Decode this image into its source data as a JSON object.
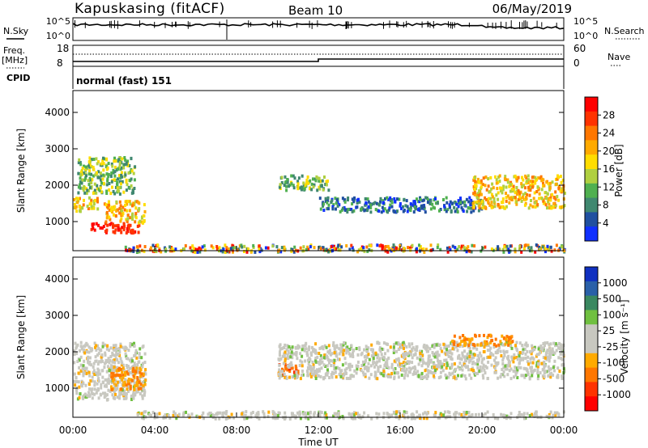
{
  "header": {
    "title": "Kapuskasing (fitACF)",
    "beam": "Beam 10",
    "date": "06/May/2019"
  },
  "top_panels": {
    "nsky_label": "N.Sky",
    "nsearch_label": "N.Search",
    "noise_ticks": [
      "10^5",
      "10^0"
    ],
    "freq_label": "Freq.",
    "freq_unit": "[MHz]",
    "freq_ticks": [
      "18",
      "8"
    ],
    "nave_ticks": [
      "60",
      "0"
    ],
    "nave_label": "Nave",
    "cpid_label": "CPID",
    "cpid_value": "normal (fast) 151"
  },
  "colorbars": {
    "power": {
      "label": "Power [dB]",
      "ticks": [
        "28",
        "24",
        "20",
        "16",
        "12",
        "8",
        "4"
      ],
      "colors": [
        "#ff0000",
        "#ff3300",
        "#ff7700",
        "#ffaa00",
        "#ffdd00",
        "#b0d040",
        "#50b050",
        "#408870",
        "#2050a0",
        "#1030ff"
      ]
    },
    "velocity": {
      "label": "Velocity [m s⁻¹]",
      "ticks": [
        "1000",
        "500",
        "100",
        "25",
        "-25",
        "-100",
        "-500",
        "-1000"
      ],
      "colors": [
        "#1030c0",
        "#2a60a8",
        "#3a8860",
        "#70c040",
        "#c8c8c0",
        "#c8c8c0",
        "#ffaa00",
        "#ff7700",
        "#ff3300",
        "#ff0000"
      ]
    }
  },
  "chart_data": [
    {
      "type": "heatmap",
      "name": "power",
      "ylabel": "Slant Range [km]",
      "y_ticks": [
        "1000",
        "2000",
        "3000",
        "4000"
      ],
      "ylim": [
        200,
        4600
      ],
      "xlim": [
        0,
        24
      ],
      "features": [
        {
          "t0": 0.0,
          "t1": 1.2,
          "r0": 1300,
          "r1": 1700,
          "level": "high"
        },
        {
          "t0": 0.8,
          "t1": 3.2,
          "r0": 700,
          "r1": 1000,
          "level": "max"
        },
        {
          "t0": 1.5,
          "t1": 3.5,
          "r0": 1000,
          "r1": 1600,
          "level": "high"
        },
        {
          "t0": 0.2,
          "t1": 3.0,
          "r0": 1800,
          "r1": 2800,
          "level": "mid"
        },
        {
          "t0": 10.0,
          "t1": 12.5,
          "r0": 1900,
          "r1": 2300,
          "level": "mid"
        },
        {
          "t0": 12.0,
          "t1": 20.0,
          "r0": 1300,
          "r1": 1700,
          "level": "low"
        },
        {
          "t0": 19.5,
          "t1": 24.0,
          "r0": 1400,
          "r1": 2300,
          "level": "high"
        },
        {
          "t0": 2.5,
          "t1": 24.0,
          "r0": 200,
          "r1": 400,
          "level": "mixed"
        }
      ]
    },
    {
      "type": "heatmap",
      "name": "velocity",
      "ylabel": "Slant Range [km]",
      "y_ticks": [
        "1000",
        "2000",
        "3000",
        "4000"
      ],
      "ylim": [
        200,
        4600
      ],
      "xlim": [
        0,
        24
      ],
      "xlabel": "Time UT",
      "x_ticks": [
        "00:00",
        "04:00",
        "08:00",
        "12:00",
        "16:00",
        "20:00",
        "00:00"
      ],
      "features": [
        {
          "t0": 0.0,
          "t1": 3.5,
          "r0": 700,
          "r1": 2300,
          "level": "ground"
        },
        {
          "t0": 1.8,
          "t1": 3.5,
          "r0": 1000,
          "r1": 1600,
          "level": "neg"
        },
        {
          "t0": 10.0,
          "t1": 11.0,
          "r0": 1400,
          "r1": 1700,
          "level": "negstrong"
        },
        {
          "t0": 10.0,
          "t1": 24.0,
          "r0": 1300,
          "r1": 2300,
          "level": "ground"
        },
        {
          "t0": 18.5,
          "t1": 21.5,
          "r0": 2200,
          "r1": 2500,
          "level": "neg"
        },
        {
          "t0": 3.0,
          "t1": 24.0,
          "r0": 200,
          "r1": 400,
          "level": "ground"
        }
      ]
    }
  ]
}
